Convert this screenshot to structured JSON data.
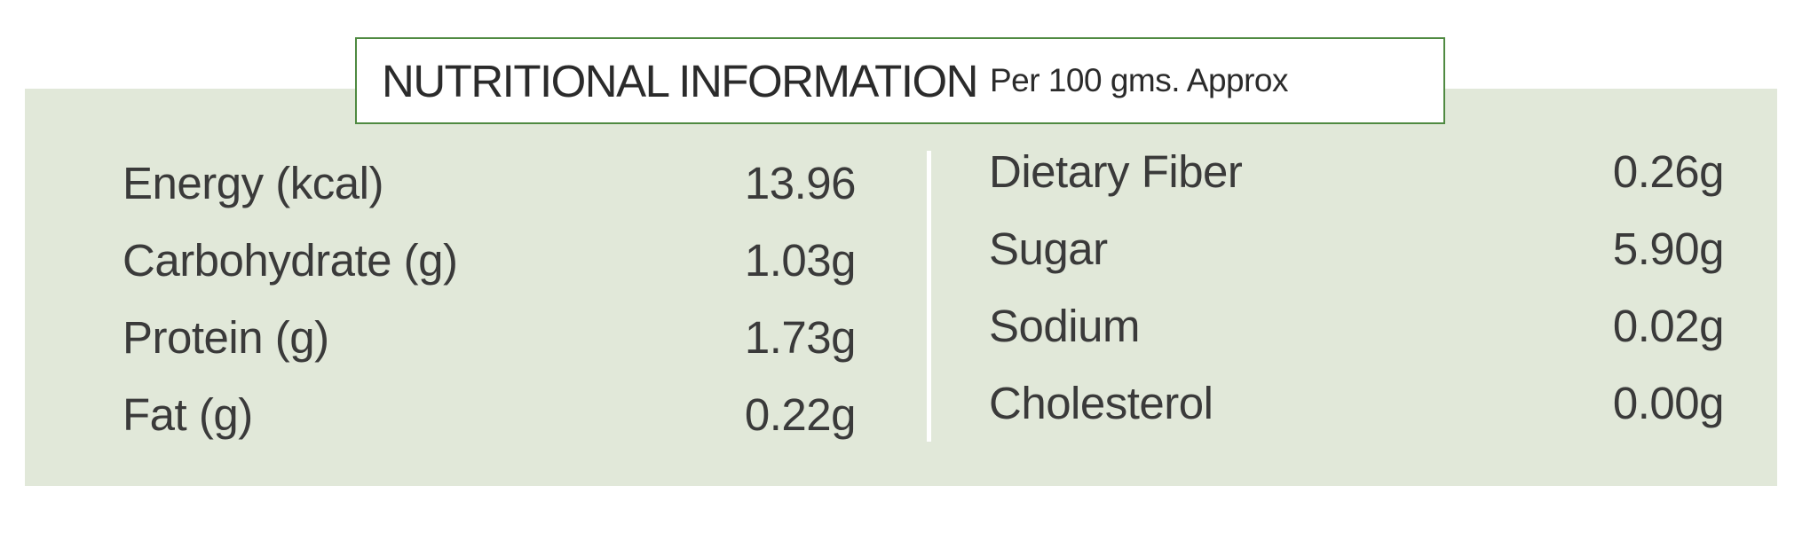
{
  "header": {
    "title": "NUTRITIONAL INFORMATION",
    "subtitle": "Per 100 gms. Approx"
  },
  "nutrients": {
    "left": [
      {
        "label": "Energy (kcal)",
        "value": "13.96"
      },
      {
        "label": "Carbohydrate (g)",
        "value": "1.03g"
      },
      {
        "label": "Protein (g)",
        "value": "1.73g"
      },
      {
        "label": "Fat (g)",
        "value": "0.22g"
      }
    ],
    "right": [
      {
        "label": "Dietary Fiber",
        "value": "0.26g"
      },
      {
        "label": "Sugar",
        "value": "5.90g"
      },
      {
        "label": "Sodium",
        "value": "0.02g"
      },
      {
        "label": "Cholesterol",
        "value": "0.00g"
      }
    ]
  },
  "colors": {
    "panel_background": "#e1e8d9",
    "title_border": "#4f8a41",
    "text": "#3a3a3a"
  }
}
